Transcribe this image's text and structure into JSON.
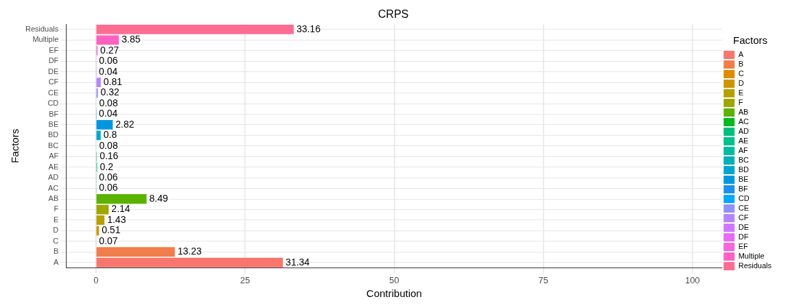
{
  "chart_data": {
    "type": "bar",
    "orientation": "horizontal",
    "stacked": true,
    "title": "CRPS",
    "xlabel": "Contribution",
    "ylabel": "Factors",
    "legend_title": "Factors",
    "categories": [
      "Residuals",
      "Multiple",
      "EF",
      "DF",
      "DE",
      "CF",
      "CE",
      "CD",
      "BF",
      "BE",
      "BD",
      "BC",
      "AF",
      "AE",
      "AD",
      "AC",
      "AB",
      "F",
      "E",
      "D",
      "C",
      "B",
      "A"
    ],
    "series": [
      {
        "name": "A",
        "color": "#F8766D",
        "values": [
          null,
          null,
          null,
          null,
          null,
          null,
          null,
          null,
          null,
          null,
          null,
          null,
          null,
          null,
          null,
          null,
          null,
          null,
          null,
          null,
          null,
          null,
          31.34
        ]
      },
      {
        "name": "B",
        "color": "#F17D4A",
        "values": [
          null,
          null,
          null,
          null,
          null,
          null,
          null,
          null,
          null,
          null,
          null,
          null,
          null,
          null,
          null,
          null,
          null,
          null,
          null,
          null,
          null,
          13.23,
          null
        ]
      },
      {
        "name": "C",
        "color": "#DE8C00",
        "values": [
          null,
          null,
          null,
          null,
          null,
          null,
          null,
          null,
          null,
          null,
          null,
          null,
          null,
          null,
          null,
          null,
          null,
          null,
          null,
          null,
          0.07,
          null,
          null
        ]
      },
      {
        "name": "D",
        "color": "#CD9600",
        "values": [
          null,
          null,
          null,
          null,
          null,
          null,
          null,
          null,
          null,
          null,
          null,
          null,
          null,
          null,
          null,
          null,
          null,
          null,
          null,
          0.51,
          null,
          null,
          null
        ]
      },
      {
        "name": "E",
        "color": "#B79F00",
        "values": [
          null,
          null,
          null,
          null,
          null,
          null,
          null,
          null,
          null,
          null,
          null,
          null,
          null,
          null,
          null,
          null,
          null,
          null,
          1.43,
          null,
          null,
          null,
          null
        ]
      },
      {
        "name": "F",
        "color": "#9DA700",
        "values": [
          null,
          null,
          null,
          null,
          null,
          null,
          null,
          null,
          null,
          null,
          null,
          null,
          null,
          null,
          null,
          null,
          null,
          2.14,
          null,
          null,
          null,
          null,
          null
        ]
      },
      {
        "name": "AB",
        "color": "#5BB300",
        "values": [
          null,
          null,
          null,
          null,
          null,
          null,
          null,
          null,
          null,
          null,
          null,
          null,
          null,
          null,
          null,
          null,
          8.49,
          null,
          null,
          null,
          null,
          null,
          null
        ]
      },
      {
        "name": "AC",
        "color": "#00B81F",
        "values": [
          null,
          null,
          null,
          null,
          null,
          null,
          null,
          null,
          null,
          null,
          null,
          null,
          null,
          null,
          null,
          0.06,
          null,
          null,
          null,
          null,
          null,
          null,
          null
        ]
      },
      {
        "name": "AD",
        "color": "#00BF7D",
        "values": [
          null,
          null,
          null,
          null,
          null,
          null,
          null,
          null,
          null,
          null,
          null,
          null,
          null,
          null,
          0.06,
          null,
          null,
          null,
          null,
          null,
          null,
          null,
          null
        ]
      },
      {
        "name": "AE",
        "color": "#00C08B",
        "values": [
          null,
          null,
          null,
          null,
          null,
          null,
          null,
          null,
          null,
          null,
          null,
          null,
          null,
          0.2,
          null,
          null,
          null,
          null,
          null,
          null,
          null,
          null,
          null
        ]
      },
      {
        "name": "AF",
        "color": "#00BCA0",
        "values": [
          null,
          null,
          null,
          null,
          null,
          null,
          null,
          null,
          null,
          null,
          null,
          null,
          0.16,
          null,
          null,
          null,
          null,
          null,
          null,
          null,
          null,
          null,
          null
        ]
      },
      {
        "name": "BC",
        "color": "#00B0B8",
        "values": [
          null,
          null,
          null,
          null,
          null,
          null,
          null,
          null,
          null,
          null,
          null,
          0.08,
          null,
          null,
          null,
          null,
          null,
          null,
          null,
          null,
          null,
          null,
          null
        ]
      },
      {
        "name": "BD",
        "color": "#00A5D0",
        "values": [
          null,
          null,
          null,
          null,
          null,
          null,
          null,
          null,
          null,
          null,
          0.8,
          null,
          null,
          null,
          null,
          null,
          null,
          null,
          null,
          null,
          null,
          null,
          null
        ]
      },
      {
        "name": "BE",
        "color": "#0097E0",
        "values": [
          null,
          null,
          null,
          null,
          null,
          null,
          null,
          null,
          null,
          2.82,
          null,
          null,
          null,
          null,
          null,
          null,
          null,
          null,
          null,
          null,
          null,
          null,
          null
        ]
      },
      {
        "name": "BF",
        "color": "#1E90F0",
        "values": [
          null,
          null,
          null,
          null,
          null,
          null,
          null,
          null,
          0.04,
          null,
          null,
          null,
          null,
          null,
          null,
          null,
          null,
          null,
          null,
          null,
          null,
          null,
          null
        ]
      },
      {
        "name": "CD",
        "color": "#00A9FF",
        "values": [
          null,
          null,
          null,
          null,
          null,
          null,
          null,
          0.08,
          null,
          null,
          null,
          null,
          null,
          null,
          null,
          null,
          null,
          null,
          null,
          null,
          null,
          null,
          null
        ]
      },
      {
        "name": "CE",
        "color": "#8F91FF",
        "values": [
          null,
          null,
          null,
          null,
          null,
          null,
          0.32,
          null,
          null,
          null,
          null,
          null,
          null,
          null,
          null,
          null,
          null,
          null,
          null,
          null,
          null,
          null,
          null
        ]
      },
      {
        "name": "CF",
        "color": "#B385FF",
        "values": [
          null,
          null,
          null,
          null,
          null,
          0.81,
          null,
          null,
          null,
          null,
          null,
          null,
          null,
          null,
          null,
          null,
          null,
          null,
          null,
          null,
          null,
          null,
          null
        ]
      },
      {
        "name": "DE",
        "color": "#CF78FF",
        "values": [
          null,
          null,
          null,
          null,
          0.04,
          null,
          null,
          null,
          null,
          null,
          null,
          null,
          null,
          null,
          null,
          null,
          null,
          null,
          null,
          null,
          null,
          null,
          null
        ]
      },
      {
        "name": "DF",
        "color": "#E76BF3",
        "values": [
          null,
          null,
          null,
          0.06,
          null,
          null,
          null,
          null,
          null,
          null,
          null,
          null,
          null,
          null,
          null,
          null,
          null,
          null,
          null,
          null,
          null,
          null,
          null
        ]
      },
      {
        "name": "EF",
        "color": "#F863DF",
        "values": [
          null,
          null,
          0.27,
          null,
          null,
          null,
          null,
          null,
          null,
          null,
          null,
          null,
          null,
          null,
          null,
          null,
          null,
          null,
          null,
          null,
          null,
          null,
          null
        ]
      },
      {
        "name": "Multiple",
        "color": "#FF61C3",
        "values": [
          null,
          3.85,
          null,
          null,
          null,
          null,
          null,
          null,
          null,
          null,
          null,
          null,
          null,
          null,
          null,
          null,
          null,
          null,
          null,
          null,
          null,
          null,
          null
        ]
      },
      {
        "name": "Residuals",
        "color": "#FF6C91",
        "values": [
          33.16,
          null,
          null,
          null,
          null,
          null,
          null,
          null,
          null,
          null,
          null,
          null,
          null,
          null,
          null,
          null,
          null,
          null,
          null,
          null,
          null,
          null,
          null
        ]
      }
    ],
    "xlim": [
      -5,
      105
    ],
    "xticks": [
      0,
      25,
      50,
      75,
      100
    ],
    "grid": true,
    "legend": "right",
    "data_labels": true
  }
}
